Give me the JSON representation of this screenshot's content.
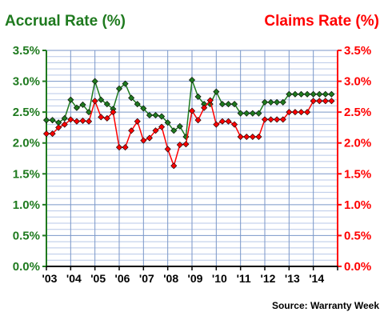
{
  "chart_data": {
    "type": "line",
    "title_left": "Accrual Rate (%)",
    "title_right": "Claims Rate (%)",
    "source": "Source: Warranty Week",
    "ylim": [
      0,
      3.5
    ],
    "y_ticks": [
      "0.0%",
      "0.5%",
      "1.0%",
      "1.5%",
      "2.0%",
      "2.5%",
      "3.0%",
      "3.5%"
    ],
    "x_labels": [
      "'03",
      "'04",
      "'05",
      "'06",
      "'07",
      "'08",
      "'09",
      "'10",
      "'11",
      "'12",
      "'13",
      "'14"
    ],
    "x_start": 2003.0,
    "x_step": 0.25,
    "grid": true,
    "colors": {
      "accrual": "#1f7a1f",
      "claims": "#ff0000",
      "grid_minor": "#b8c8e8",
      "grid_major": "#7a96c8"
    },
    "series": [
      {
        "key": "accrual",
        "values": [
          2.37,
          2.37,
          2.33,
          2.4,
          2.7,
          2.57,
          2.62,
          2.5,
          3.0,
          2.7,
          2.63,
          2.55,
          2.88,
          2.96,
          2.73,
          2.63,
          2.56,
          2.45,
          2.45,
          2.43,
          2.33,
          2.2,
          2.27,
          2.1,
          3.02,
          2.75,
          2.63,
          2.63,
          2.83,
          2.63,
          2.63,
          2.63,
          2.48,
          2.48,
          2.48,
          2.48,
          2.66,
          2.66,
          2.66,
          2.66,
          2.79,
          2.79,
          2.79,
          2.79,
          2.79,
          2.79,
          2.79,
          2.79
        ]
      },
      {
        "key": "claims",
        "values": [
          2.15,
          2.15,
          2.25,
          2.3,
          2.38,
          2.35,
          2.36,
          2.35,
          2.68,
          2.42,
          2.4,
          2.5,
          1.93,
          1.93,
          2.2,
          2.35,
          2.04,
          2.08,
          2.2,
          2.26,
          1.9,
          1.63,
          1.97,
          1.98,
          2.52,
          2.37,
          2.57,
          2.69,
          2.3,
          2.35,
          2.35,
          2.3,
          2.1,
          2.1,
          2.1,
          2.1,
          2.38,
          2.38,
          2.38,
          2.38,
          2.5,
          2.5,
          2.5,
          2.5,
          2.68,
          2.68,
          2.68,
          2.68
        ]
      }
    ]
  }
}
